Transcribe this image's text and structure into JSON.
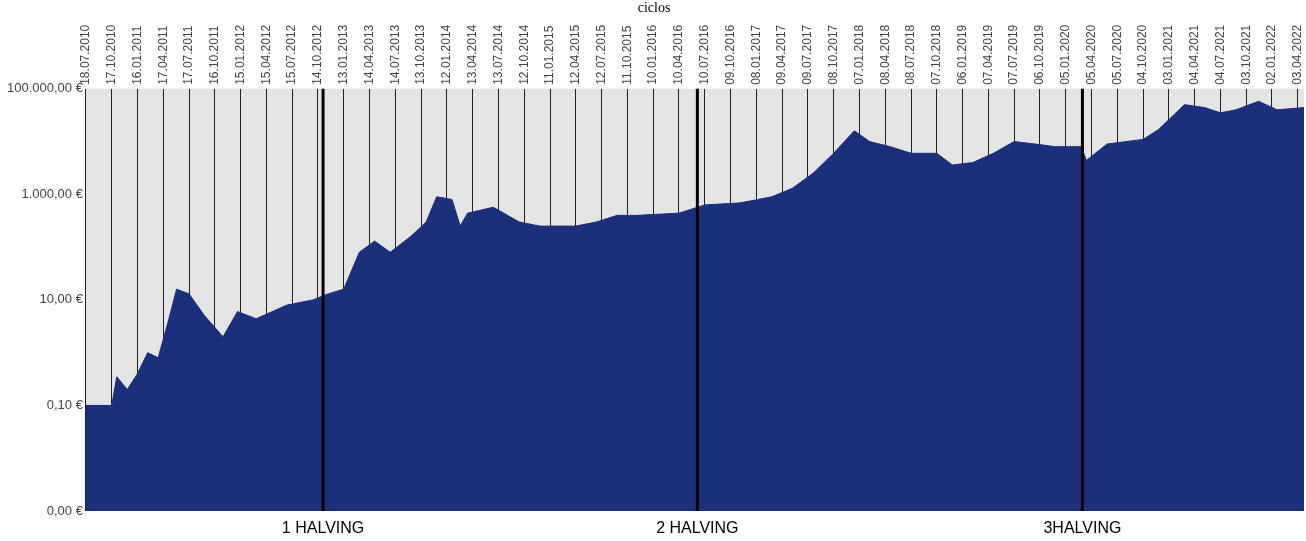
{
  "chart_data": {
    "type": "area",
    "title": "ciclos",
    "x": [
      "2010-07-18",
      "2010-10-17",
      "2010-11-04",
      "2010-12-11",
      "2011-01-16",
      "2011-02-21",
      "2011-03-30",
      "2011-05-05",
      "2011-06-03",
      "2011-07-17",
      "2011-09-10",
      "2011-11-14",
      "2012-01-04",
      "2012-03-10",
      "2012-06-27",
      "2012-09-26",
      "2012-11-19",
      "2013-01-13",
      "2013-03-09",
      "2013-05-02",
      "2013-06-26",
      "2013-09-07",
      "2013-10-31",
      "2013-12-07",
      "2014-01-30",
      "2014-02-28",
      "2014-03-26",
      "2014-06-25",
      "2014-09-24",
      "2014-12-06",
      "2015-01-29",
      "2015-04-12",
      "2015-06-24",
      "2015-09-05",
      "2015-11-16",
      "2016-04-10",
      "2016-07-10",
      "2016-11-14",
      "2017-03-04",
      "2017-05-15",
      "2017-07-27",
      "2017-10-08",
      "2017-12-20",
      "2018-02-12",
      "2018-04-26",
      "2018-07-08",
      "2018-10-07",
      "2018-12-01",
      "2019-02-11",
      "2019-04-25",
      "2019-07-07",
      "2019-09-18",
      "2019-11-30",
      "2020-02-29",
      "2020-03-18",
      "2020-05-30",
      "2020-10-04",
      "2020-11-28",
      "2021-02-27",
      "2021-05-10",
      "2021-07-04",
      "2021-08-28",
      "2021-11-16",
      "2022-01-20",
      "2022-04-25"
    ],
    "series": [
      {
        "color": "#1b2f7a",
        "values": [
          0.1,
          0.1,
          0.35,
          0.2,
          0.4,
          1,
          0.8,
          4,
          16,
          13,
          5,
          2,
          6,
          4.4,
          8,
          10,
          13,
          16,
          80,
          130,
          80,
          160,
          300,
          900,
          800,
          250,
          440,
          570,
          300,
          250,
          250,
          250,
          300,
          400,
          400,
          440,
          630,
          690,
          900,
          1300,
          2500,
          6000,
          16000,
          10000,
          8000,
          6000,
          6000,
          3600,
          4000,
          6000,
          10000,
          9000,
          8000,
          8000,
          4400,
          9000,
          11000,
          17000,
          50000,
          44000,
          35000,
          40000,
          58000,
          40000,
          44000
        ]
      }
    ],
    "log": "y",
    "xlim": [
      "2010-07-18",
      "2022-04-25"
    ],
    "ylim": [
      0.001,
      100000
    ],
    "yticks": [
      {
        "value": 0.001,
        "label": "0,00 €"
      },
      {
        "value": 0.1,
        "label": "0,10 €"
      },
      {
        "value": 10,
        "label": "10,00 €"
      },
      {
        "value": 1000,
        "label": "1.000,00 €"
      },
      {
        "value": 100000,
        "label": "100.000,00 €"
      }
    ],
    "xticks": [
      {
        "value": "2010-07-18",
        "label": "18.07.2010"
      },
      {
        "value": "2010-10-17",
        "label": "17.10.2010"
      },
      {
        "value": "2011-01-16",
        "label": "16.01.2011"
      },
      {
        "value": "2011-04-17",
        "label": "17.04.2011"
      },
      {
        "value": "2011-07-17",
        "label": "17.07.2011"
      },
      {
        "value": "2011-10-16",
        "label": "16.10.2011"
      },
      {
        "value": "2012-01-15",
        "label": "15.01.2012"
      },
      {
        "value": "2012-04-15",
        "label": "15.04.2012"
      },
      {
        "value": "2012-07-15",
        "label": "15.07.2012"
      },
      {
        "value": "2012-10-14",
        "label": "14.10.2012"
      },
      {
        "value": "2013-01-13",
        "label": "13.01.2013"
      },
      {
        "value": "2013-04-14",
        "label": "14.04.2013"
      },
      {
        "value": "2013-07-14",
        "label": "14.07.2013"
      },
      {
        "value": "2013-10-13",
        "label": "13.10.2013"
      },
      {
        "value": "2014-01-12",
        "label": "12.01.2014"
      },
      {
        "value": "2014-04-13",
        "label": "13.04.2014"
      },
      {
        "value": "2014-07-13",
        "label": "13.07.2014"
      },
      {
        "value": "2014-10-12",
        "label": "12.10.2014"
      },
      {
        "value": "2015-01-11",
        "label": "11.01.2015"
      },
      {
        "value": "2015-04-12",
        "label": "12.04.2015"
      },
      {
        "value": "2015-07-12",
        "label": "12.07.2015"
      },
      {
        "value": "2015-10-11",
        "label": "11.10.2015"
      },
      {
        "value": "2016-01-10",
        "label": "10.01.2016"
      },
      {
        "value": "2016-04-10",
        "label": "10.04.2016"
      },
      {
        "value": "2016-07-10",
        "label": "10.07.2016"
      },
      {
        "value": "2016-10-09",
        "label": "09.10.2016"
      },
      {
        "value": "2017-01-08",
        "label": "08.01.2017"
      },
      {
        "value": "2017-04-09",
        "label": "09.04.2017"
      },
      {
        "value": "2017-07-09",
        "label": "09.07.2017"
      },
      {
        "value": "2017-10-08",
        "label": "08.10.2017"
      },
      {
        "value": "2018-01-07",
        "label": "07.01.2018"
      },
      {
        "value": "2018-04-08",
        "label": "08.04.2018"
      },
      {
        "value": "2018-07-08",
        "label": "08.07.2018"
      },
      {
        "value": "2018-10-07",
        "label": "07.10.2018"
      },
      {
        "value": "2019-01-06",
        "label": "06.01.2019"
      },
      {
        "value": "2019-04-07",
        "label": "07.04.2019"
      },
      {
        "value": "2019-07-07",
        "label": "07.07.2019"
      },
      {
        "value": "2019-10-06",
        "label": "06.10.2019"
      },
      {
        "value": "2020-01-05",
        "label": "05.01.2020"
      },
      {
        "value": "2020-04-05",
        "label": "05.04.2020"
      },
      {
        "value": "2020-07-05",
        "label": "05.07.2020"
      },
      {
        "value": "2020-10-04",
        "label": "04.10.2020"
      },
      {
        "value": "2021-01-03",
        "label": "03.01.2021"
      },
      {
        "value": "2021-04-04",
        "label": "04.04.2021"
      },
      {
        "value": "2021-07-04",
        "label": "04.07.2021"
      },
      {
        "value": "2021-10-03",
        "label": "03.10.2021"
      },
      {
        "value": "2022-01-02",
        "label": "02.01.2022"
      },
      {
        "value": "2022-04-03",
        "label": "03.04.2022"
      }
    ],
    "grid": "x",
    "ref_lines": [
      {
        "axis": "x",
        "value": "2012-11-01",
        "label": "1 HALVING",
        "color": "#000000"
      },
      {
        "axis": "x",
        "value": "2016-06-14",
        "label": "2 HALVING",
        "color": "#000000"
      },
      {
        "axis": "x",
        "value": "2020-03-04",
        "label": "3HALVING",
        "color": "#000000"
      }
    ]
  }
}
